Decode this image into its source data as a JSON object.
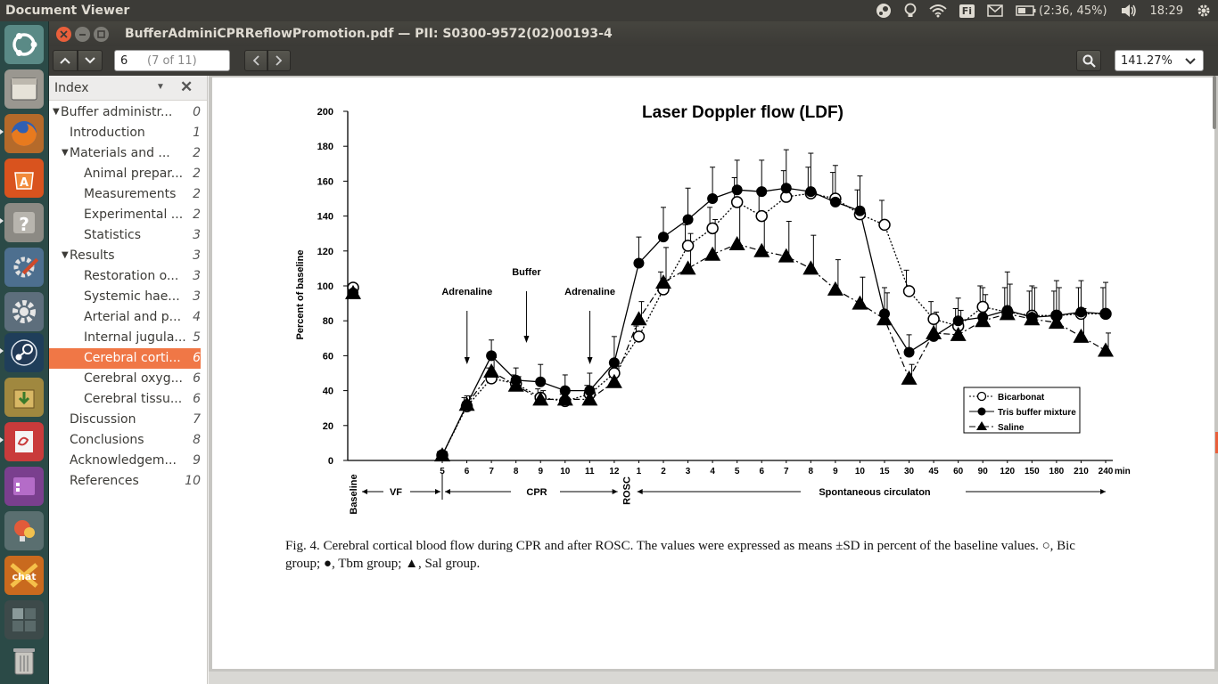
{
  "top_panel": {
    "app_title": "Document Viewer",
    "battery": "(2:36, 45%)",
    "clock": "18:29",
    "keyboard": "Fi"
  },
  "launcher": {
    "items": [
      "ubuntu-dash",
      "file-manager",
      "firefox",
      "software-center",
      "help",
      "system-settings-tools",
      "system-settings",
      "steam",
      "archive-manager",
      "document-viewer",
      "screen-app",
      "idea-app",
      "chat-app",
      "workspace-switcher",
      "trash"
    ]
  },
  "window": {
    "title": "BufferAdminiCPRReflowPromotion.pdf — PII: S0300-9572(02)00193-4",
    "page_current": "6",
    "page_of": "(7 of 11)",
    "zoom": "141.27%"
  },
  "sidebar": {
    "header": "Index",
    "items": [
      {
        "label": "Buffer administr...",
        "page": "0",
        "level": 0,
        "arrow": true
      },
      {
        "label": "Introduction",
        "page": "1",
        "level": 1,
        "arrow": false
      },
      {
        "label": "Materials and ...",
        "page": "2",
        "level": 1,
        "arrow": true
      },
      {
        "label": "Animal prepar...",
        "page": "2",
        "level": 2,
        "arrow": false
      },
      {
        "label": "Measurements",
        "page": "2",
        "level": 2,
        "arrow": false
      },
      {
        "label": "Experimental ...",
        "page": "2",
        "level": 2,
        "arrow": false
      },
      {
        "label": "Statistics",
        "page": "3",
        "level": 2,
        "arrow": false
      },
      {
        "label": "Results",
        "page": "3",
        "level": 1,
        "arrow": true
      },
      {
        "label": "Restoration o...",
        "page": "3",
        "level": 2,
        "arrow": false
      },
      {
        "label": "Systemic hae...",
        "page": "3",
        "level": 2,
        "arrow": false
      },
      {
        "label": "Arterial and p...",
        "page": "4",
        "level": 2,
        "arrow": false
      },
      {
        "label": "Internal jugula...",
        "page": "5",
        "level": 2,
        "arrow": false
      },
      {
        "label": "Cerebral corti...",
        "page": "6",
        "level": 2,
        "arrow": false,
        "selected": true
      },
      {
        "label": "Cerebral oxyg...",
        "page": "6",
        "level": 2,
        "arrow": false
      },
      {
        "label": "Cerebral tissu...",
        "page": "6",
        "level": 2,
        "arrow": false
      },
      {
        "label": "Discussion",
        "page": "7",
        "level": 1,
        "arrow": false
      },
      {
        "label": "Conclusions",
        "page": "8",
        "level": 1,
        "arrow": false
      },
      {
        "label": "Acknowledgem...",
        "page": "9",
        "level": 1,
        "arrow": false
      },
      {
        "label": "References",
        "page": "10",
        "level": 1,
        "arrow": false
      }
    ]
  },
  "figure": {
    "caption_line1": "Fig. 4.  Cerebral cortical blood flow during CPR and after ROSC. The values were expressed as means ±SD in percent of the baseline values. ○, Bic",
    "caption_line2": "group; ●, Tbm group; ▲, Sal group."
  },
  "chart_data": {
    "type": "line",
    "title": "Laser Doppler flow (LDF)",
    "ylabel": "Percent of baseline",
    "ylim": [
      0,
      200
    ],
    "yticks": [
      "0",
      "20",
      "40",
      "60",
      "80",
      "100",
      "120",
      "140",
      "160",
      "180",
      "200"
    ],
    "categories": [
      "5",
      "6",
      "7",
      "8",
      "9",
      "10",
      "11",
      "12",
      "1",
      "2",
      "3",
      "4",
      "5",
      "6",
      "7",
      "8",
      "9",
      "10",
      "15",
      "30",
      "45",
      "60",
      "90",
      "120",
      "150",
      "180",
      "210",
      "240"
    ],
    "x_unit": "min",
    "baseline_label": "Baseline",
    "rosc_label": "ROSC",
    "phases": [
      "VF",
      "CPR",
      "Spontaneous circulaton"
    ],
    "annotations": [
      "Adrenaline",
      "Buffer",
      "Adrenaline"
    ],
    "legend_position": "bottom-right",
    "baseline": {
      "Bicarbonat": 99,
      "Tris buffer mixture": 96,
      "Saline": 96
    },
    "series": [
      {
        "name": "Bicarbonat",
        "marker": "open-circle",
        "line": "dotted",
        "values": [
          3,
          31,
          47,
          44,
          36,
          34,
          38,
          50,
          71,
          98,
          123,
          133,
          148,
          140,
          151,
          153,
          150,
          141,
          135,
          97,
          81,
          77,
          88,
          85,
          83,
          83,
          84,
          84
        ],
        "sd": [
          2,
          5,
          6,
          5,
          5,
          4,
          5,
          6,
          6,
          10,
          12,
          12,
          14,
          15,
          15,
          15,
          15,
          14,
          14,
          12,
          10,
          10,
          12,
          14,
          14,
          14,
          15,
          15
        ]
      },
      {
        "name": "Tris buffer mixture",
        "marker": "filled-circle",
        "line": "solid",
        "values": [
          3,
          32,
          60,
          46,
          45,
          40,
          40,
          56,
          113,
          128,
          138,
          150,
          155,
          154,
          156,
          154,
          148,
          143,
          84,
          62,
          71,
          80,
          82,
          86,
          82,
          83,
          85,
          84
        ],
        "sd": [
          2,
          5,
          9,
          7,
          10,
          9,
          10,
          15,
          15,
          17,
          18,
          18,
          17,
          18,
          22,
          22,
          21,
          20,
          15,
          10,
          10,
          13,
          17,
          22,
          18,
          20,
          18,
          18
        ]
      },
      {
        "name": "Saline",
        "marker": "filled-triangle",
        "line": "dash-dot",
        "values": [
          3,
          32,
          51,
          43,
          35,
          35,
          35,
          45,
          81,
          102,
          110,
          118,
          124,
          120,
          117,
          110,
          98,
          90,
          81,
          47,
          73,
          72,
          80,
          84,
          81,
          79,
          71,
          63
        ],
        "sd": [
          2,
          5,
          8,
          5,
          5,
          5,
          6,
          8,
          10,
          20,
          20,
          20,
          23,
          22,
          20,
          19,
          17,
          15,
          15,
          8,
          12,
          14,
          15,
          17,
          18,
          20,
          16,
          10
        ]
      }
    ]
  },
  "colors": {
    "accent": "#f07746",
    "panel": "#3c3b37",
    "launcher": "#2b4a47"
  }
}
